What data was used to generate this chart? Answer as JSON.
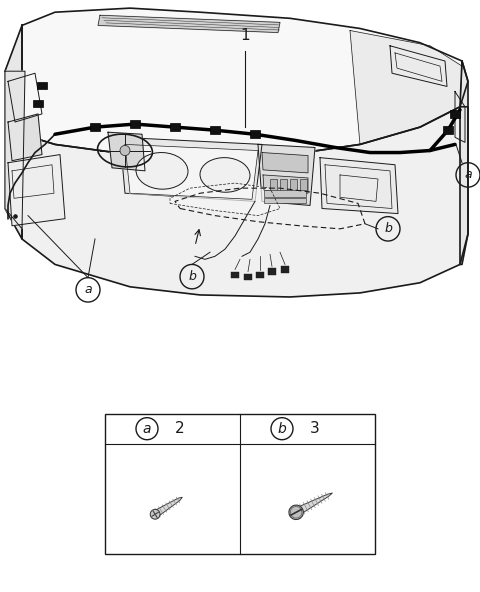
{
  "bg_color": "#ffffff",
  "line_color": "#1a1a1a",
  "figure_width": 4.8,
  "figure_height": 5.92,
  "dpi": 100,
  "label_1": "1",
  "label_a": "a",
  "label_b": "b",
  "table_label_a": "a",
  "table_label_b": "b",
  "table_num_a": "2",
  "table_num_b": "3"
}
